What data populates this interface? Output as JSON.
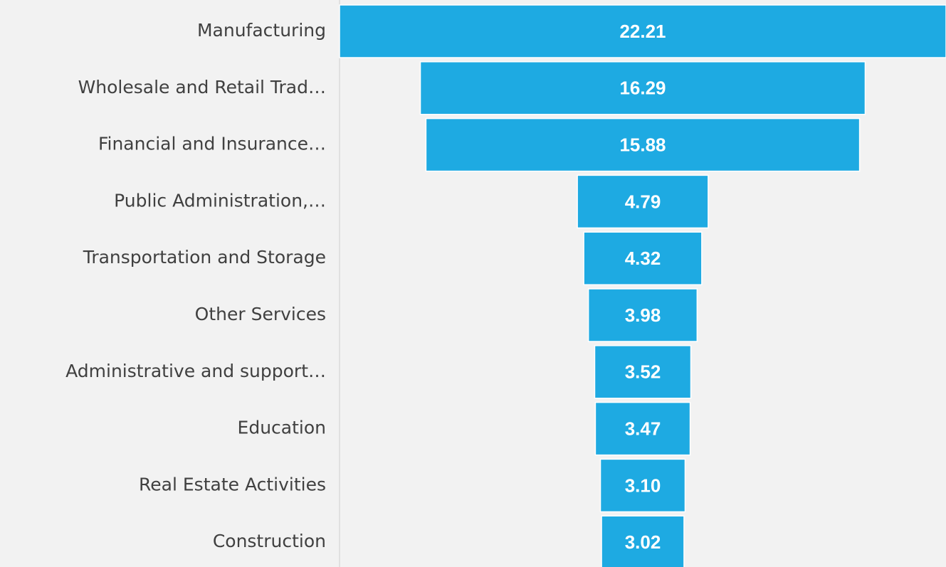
{
  "chart_data": {
    "type": "funnel",
    "categories": [
      "Manufacturing",
      "Wholesale and Retail Trad…",
      "Financial and Insurance…",
      "Public Administration,…",
      "Transportation and Storage",
      "Other Services",
      "Administrative and support…",
      "Education",
      "Real Estate Activities",
      "Construction"
    ],
    "values": [
      22.21,
      16.29,
      15.88,
      4.79,
      4.32,
      3.98,
      3.52,
      3.47,
      3.1,
      3.02
    ],
    "value_labels": [
      "22.21",
      "16.29",
      "15.88",
      "4.79",
      "4.32",
      "3.98",
      "3.52",
      "3.47",
      "3.10",
      "3.02"
    ],
    "color": "#1eaae2"
  }
}
